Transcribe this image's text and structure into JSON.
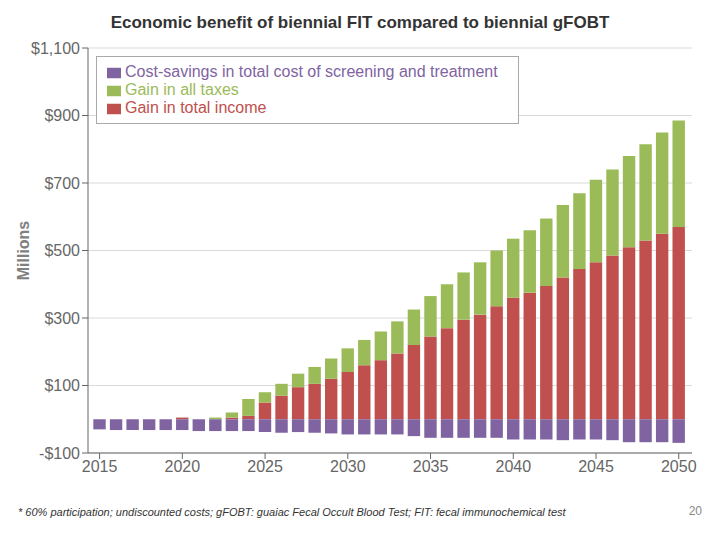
{
  "chart_data": {
    "type": "bar",
    "stacked": true,
    "title": "Economic benefit of biennial FIT compared to biennial gFOBT",
    "ylabel": "Millions",
    "annotations": [
      "* 60% participation; undiscounted costs; gFOBT: guaiac Fecal Occult Blood Test; FIT: fecal immunochemical test",
      "20"
    ],
    "x": [
      2015,
      2016,
      2017,
      2018,
      2019,
      2020,
      2021,
      2022,
      2023,
      2024,
      2025,
      2026,
      2027,
      2028,
      2029,
      2030,
      2031,
      2032,
      2033,
      2034,
      2035,
      2036,
      2037,
      2038,
      2039,
      2040,
      2041,
      2042,
      2043,
      2044,
      2045,
      2046,
      2047,
      2048,
      2049,
      2050
    ],
    "xlim": [
      2014.3,
      2050.8
    ],
    "xticks": [
      2015,
      2020,
      2025,
      2030,
      2035,
      2040,
      2045,
      2050
    ],
    "ylim": [
      -100,
      1100
    ],
    "yticks": [
      {
        "value": -100,
        "label": "-$100"
      },
      {
        "value": 100,
        "label": "$100"
      },
      {
        "value": 300,
        "label": "$300"
      },
      {
        "value": 500,
        "label": "$500"
      },
      {
        "value": 700,
        "label": "$700"
      },
      {
        "value": 900,
        "label": "$900"
      },
      {
        "value": 1100,
        "label": "$1,100"
      }
    ],
    "series": [
      {
        "name": "Gain in total income",
        "color": "#C0504D",
        "values": [
          0,
          0,
          0,
          0,
          0,
          5,
          0,
          0,
          5,
          10,
          50,
          70,
          95,
          105,
          120,
          140,
          160,
          175,
          195,
          220,
          245,
          270,
          295,
          310,
          335,
          360,
          375,
          395,
          420,
          445,
          465,
          485,
          510,
          530,
          550,
          570
        ]
      },
      {
        "name": "Gain in all taxes",
        "color": "#9BBB59",
        "values": [
          0,
          0,
          0,
          0,
          0,
          0,
          0,
          5,
          15,
          50,
          30,
          35,
          40,
          50,
          60,
          70,
          75,
          85,
          95,
          105,
          120,
          130,
          140,
          155,
          165,
          175,
          185,
          200,
          215,
          225,
          245,
          255,
          270,
          285,
          300,
          315
        ]
      },
      {
        "name": "Cost-savings in total cost of screening and treatment",
        "color": "#8064A2",
        "values": [
          -30,
          -32,
          -32,
          -32,
          -32,
          -32,
          -35,
          -35,
          -35,
          -35,
          -38,
          -40,
          -38,
          -40,
          -42,
          -45,
          -45,
          -45,
          -45,
          -50,
          -55,
          -55,
          -55,
          -55,
          -55,
          -60,
          -60,
          -60,
          -62,
          -60,
          -60,
          -62,
          -68,
          -68,
          -68,
          -70
        ]
      }
    ],
    "grid": "y",
    "legend": "upper left"
  }
}
